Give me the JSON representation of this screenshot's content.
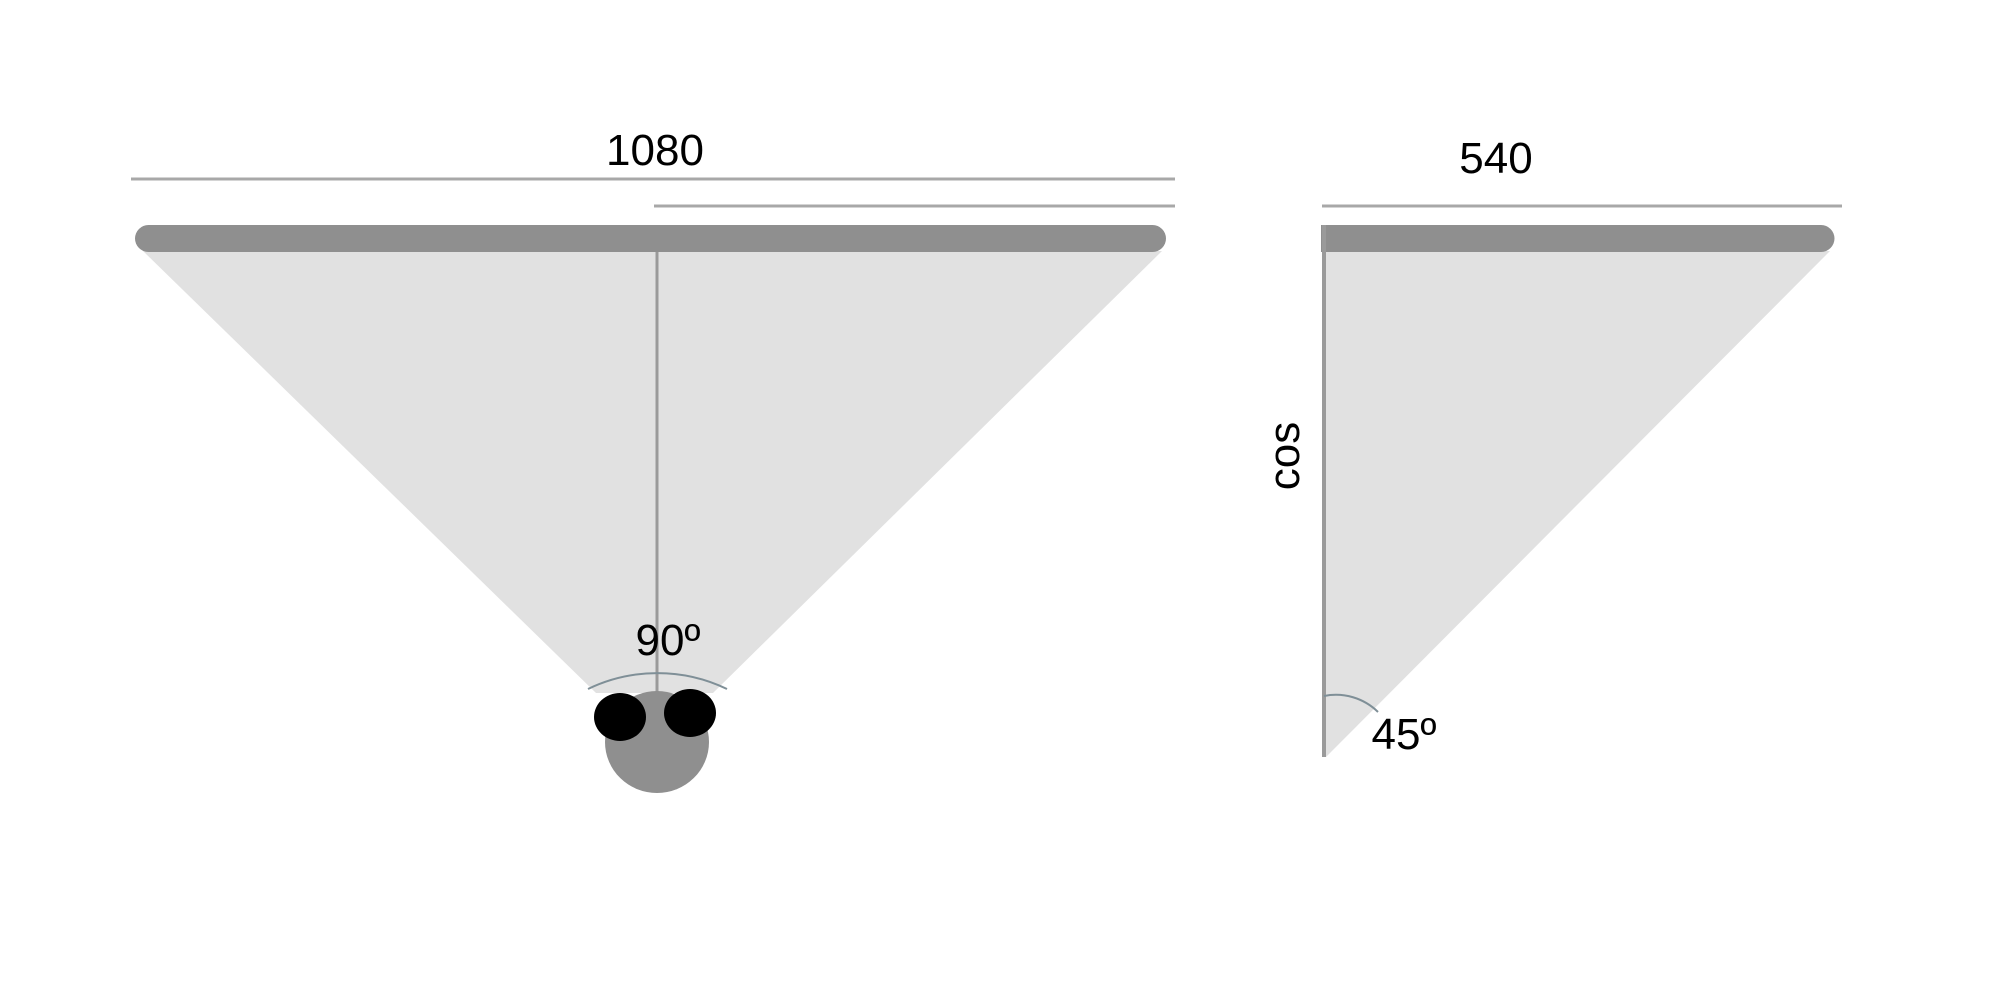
{
  "colors": {
    "background": "#ffffff",
    "fov_fill": "#e1e1e1",
    "screen_bar": "#8f8f8f",
    "guide_line": "#a8a8a8",
    "center_line": "#9a9a9a",
    "head": "#8f8f8f",
    "eye": "#000000",
    "angle_arc": "#7f8f97"
  },
  "left_diagram": {
    "width_label": "1080",
    "angle_label": "90º"
  },
  "right_diagram": {
    "width_label": "540",
    "side_label": "cos",
    "angle_label": "45º"
  }
}
